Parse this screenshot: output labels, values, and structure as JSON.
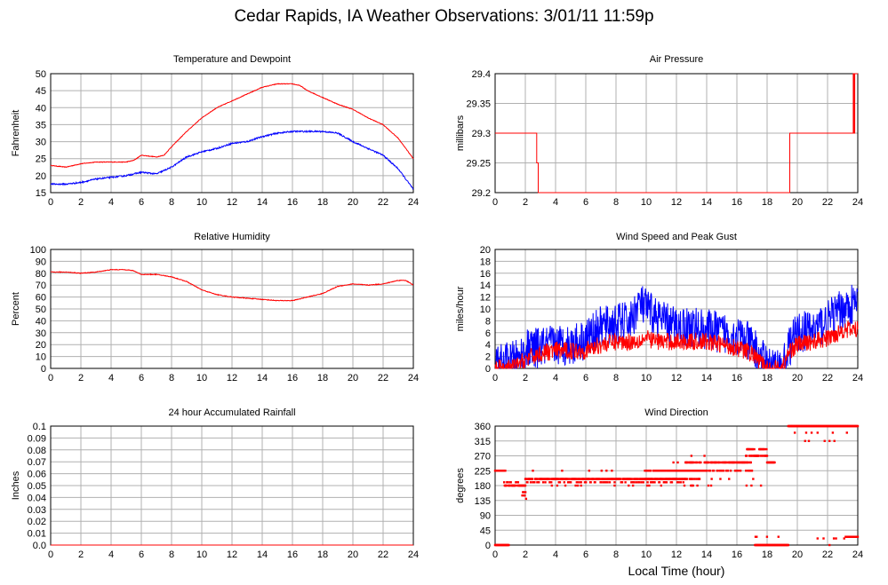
{
  "page": {
    "title": "Cedar Rapids, IA Weather Observations: 3/01/11 11:59p",
    "xlabel": "Local Time (hour)"
  },
  "colors": {
    "primary": "#ff0000",
    "secondary": "#0000ff",
    "grid": "#b0b0b0",
    "axis": "#000000"
  },
  "chart_data": [
    {
      "id": "temp",
      "type": "line",
      "title": "Temperature and Dewpoint",
      "ylabel": "Fahrenheit",
      "xlabel": "",
      "xlim": [
        0,
        24
      ],
      "ylim": [
        15,
        50
      ],
      "xticks": [
        "0",
        "2",
        "4",
        "6",
        "8",
        "10",
        "12",
        "14",
        "16",
        "18",
        "20",
        "22",
        "24"
      ],
      "yticks": [
        "15",
        "20",
        "25",
        "30",
        "35",
        "40",
        "45",
        "50"
      ],
      "grid": true,
      "series": [
        {
          "color": "#ff0000",
          "noise": 0.15,
          "x": [
            0,
            1,
            2,
            3,
            4,
            5,
            5.5,
            6,
            7,
            7.5,
            8,
            9,
            10,
            11,
            12,
            13,
            14,
            15,
            15.5,
            16,
            16.5,
            17,
            18,
            19,
            20,
            21,
            22,
            23,
            24
          ],
          "y": [
            23,
            22.5,
            23.5,
            24,
            24,
            24,
            24.5,
            26,
            25.5,
            26,
            28.5,
            33,
            37,
            40,
            42,
            44,
            46,
            47,
            47,
            47,
            46.5,
            45,
            43,
            41,
            39.5,
            37,
            35,
            31,
            25
          ]
        },
        {
          "color": "#0000ff",
          "noise": 0.35,
          "x": [
            0,
            1,
            2,
            3,
            4,
            5,
            6,
            7,
            8,
            9,
            10,
            11,
            12,
            13,
            14,
            15,
            16,
            17,
            18,
            19,
            20,
            21,
            22,
            23,
            24
          ],
          "y": [
            17.5,
            17.5,
            18,
            19,
            19.5,
            20,
            21,
            20.5,
            22.5,
            25.5,
            27,
            28,
            29.5,
            30,
            31.5,
            32.5,
            33,
            33,
            33,
            32.5,
            30,
            28,
            26,
            22,
            16
          ]
        }
      ]
    },
    {
      "id": "pressure",
      "type": "line",
      "title": "Air Pressure",
      "ylabel": "millibars",
      "xlabel": "",
      "xlim": [
        0,
        24
      ],
      "ylim": [
        29.2,
        29.4
      ],
      "xticks": [
        "0",
        "2",
        "4",
        "6",
        "8",
        "10",
        "12",
        "14",
        "16",
        "18",
        "20",
        "22",
        "24"
      ],
      "yticks": [
        "29.2",
        "29.25",
        "29.3",
        "29.35",
        "29.4"
      ],
      "grid": true,
      "series": [
        {
          "color": "#ff0000",
          "noise": 0,
          "x": [
            0,
            2.75,
            2.75,
            2.85,
            2.85,
            19.5,
            19.5,
            23.7,
            23.7,
            23.75,
            23.75,
            23.8,
            23.8,
            24
          ],
          "y": [
            29.3,
            29.3,
            29.25,
            29.25,
            29.2,
            29.2,
            29.3,
            29.3,
            29.4,
            29.4,
            29.3,
            29.3,
            29.4,
            29.4
          ]
        }
      ]
    },
    {
      "id": "humidity",
      "type": "line",
      "title": "Relative Humidity",
      "ylabel": "Percent",
      "xlabel": "",
      "xlim": [
        0,
        24
      ],
      "ylim": [
        0,
        100
      ],
      "xticks": [
        "0",
        "2",
        "4",
        "6",
        "8",
        "10",
        "12",
        "14",
        "16",
        "18",
        "20",
        "22",
        "24"
      ],
      "yticks": [
        "0",
        "10",
        "20",
        "30",
        "40",
        "50",
        "60",
        "70",
        "80",
        "90",
        "100"
      ],
      "grid": true,
      "series": [
        {
          "color": "#ff0000",
          "noise": 0.5,
          "x": [
            0,
            1,
            2,
            3,
            4,
            5,
            5.5,
            6,
            7,
            8,
            9,
            10,
            11,
            12,
            13,
            14,
            15,
            16,
            17,
            18,
            19,
            20,
            21,
            22,
            23,
            23.5,
            24
          ],
          "y": [
            81,
            81,
            80,
            81,
            83,
            83,
            82,
            79,
            79,
            77,
            73,
            66,
            62,
            60,
            59,
            58,
            57,
            57,
            60,
            63,
            69,
            71,
            70,
            71,
            74,
            74,
            70
          ]
        }
      ]
    },
    {
      "id": "wind",
      "type": "line",
      "title": "Wind Speed and Peak Gust",
      "ylabel": "miles/hour",
      "xlabel": "",
      "xlim": [
        0,
        24
      ],
      "ylim": [
        0,
        20
      ],
      "xticks": [
        "0",
        "2",
        "4",
        "6",
        "8",
        "10",
        "12",
        "14",
        "16",
        "18",
        "20",
        "22",
        "24"
      ],
      "yticks": [
        "0",
        "2",
        "4",
        "6",
        "8",
        "10",
        "12",
        "14",
        "16",
        "18",
        "20"
      ],
      "grid": true,
      "series": [
        {
          "color": "#0000ff",
          "noise": 3.5,
          "floor": 0,
          "x": [
            0,
            1,
            1.5,
            2,
            3,
            4,
            5,
            6,
            7,
            8,
            9,
            9.5,
            10,
            11,
            12,
            13,
            14,
            15,
            16,
            17,
            17.5,
            18,
            18.5,
            19,
            19.5,
            20,
            21,
            22,
            23,
            24
          ],
          "y": [
            0.5,
            1,
            1.5,
            3,
            3.5,
            4,
            4,
            5,
            7,
            7.5,
            8,
            11,
            10,
            8,
            7,
            7,
            6.5,
            6,
            5.5,
            4,
            2,
            0.5,
            0,
            0,
            4,
            6,
            6.5,
            8,
            10,
            11
          ]
        },
        {
          "color": "#ff0000",
          "noise": 1.5,
          "floor": 0,
          "x": [
            0,
            1,
            1.5,
            2,
            3,
            4,
            5,
            6,
            7,
            8,
            9,
            10,
            11,
            12,
            13,
            14,
            15,
            16,
            17,
            17.5,
            18,
            19,
            19.5,
            20,
            21,
            22,
            23,
            24
          ],
          "y": [
            0,
            0,
            0.5,
            1.5,
            2.5,
            3,
            3,
            3,
            4,
            4.5,
            4.5,
            5,
            4.5,
            4.5,
            4.5,
            4.5,
            4,
            3.5,
            2.5,
            1,
            0,
            0,
            3,
            4,
            4.5,
            5,
            6.5,
            6.5
          ]
        }
      ]
    },
    {
      "id": "rain",
      "type": "line",
      "title": "24 hour Accumulated Rainfall",
      "ylabel": "Inches",
      "xlabel": "",
      "xlim": [
        0,
        24
      ],
      "ylim": [
        0,
        0.1
      ],
      "xticks": [
        "0",
        "2",
        "4",
        "6",
        "8",
        "10",
        "12",
        "14",
        "16",
        "18",
        "20",
        "22",
        "24"
      ],
      "yticks": [
        "0.0",
        "0.01",
        "0.02",
        "0.03",
        "0.04",
        "0.05",
        "0.06",
        "0.07",
        "0.08",
        "0.09",
        "0.1"
      ],
      "grid": true,
      "series": [
        {
          "color": "#ff0000",
          "noise": 0,
          "x": [
            0,
            24
          ],
          "y": [
            0,
            0
          ]
        }
      ]
    },
    {
      "id": "winddir",
      "type": "scatter",
      "title": "Wind Direction",
      "ylabel": "degrees",
      "xlabel": "Local Time (hour)",
      "xlim": [
        0,
        24
      ],
      "ylim": [
        0,
        360
      ],
      "xticks": [
        "0",
        "2",
        "4",
        "6",
        "8",
        "10",
        "12",
        "14",
        "16",
        "18",
        "20",
        "22",
        "24"
      ],
      "yticks": [
        "0",
        "45",
        "90",
        "135",
        "180",
        "225",
        "270",
        "315",
        "360"
      ],
      "grid": true,
      "series": [
        {
          "color": "#ff0000",
          "segments": [
            {
              "x0": 0,
              "x1": 0.9,
              "y": [
                0,
                0
              ],
              "jitter": []
            },
            {
              "x0": 0,
              "x1": 0.6,
              "y": [
                225
              ],
              "jitter": [
                225
              ]
            },
            {
              "x0": 0.6,
              "x1": 2,
              "y": [
                180,
                180,
                180,
                190
              ],
              "jitter": [
                150,
                160,
                225
              ]
            },
            {
              "x0": 1.8,
              "x1": 2.05,
              "y": [
                140,
                150,
                160
              ],
              "jitter": []
            },
            {
              "x0": 2,
              "x1": 12.6,
              "y": [
                200,
                200,
                200,
                190
              ],
              "jitter": [
                180,
                225,
                225,
                180
              ]
            },
            {
              "x0": 10,
              "x1": 14,
              "y": [
                225,
                225,
                200
              ],
              "jitter": [
                180,
                250,
                270
              ]
            },
            {
              "x0": 12.6,
              "x1": 17,
              "y": [
                250,
                250,
                225
              ],
              "jitter": [
                200,
                180,
                270
              ]
            },
            {
              "x0": 16.6,
              "x1": 18,
              "y": [
                270,
                290
              ],
              "jitter": [
                315,
                340,
                360,
                200,
                180,
                250
              ]
            },
            {
              "x0": 18,
              "x1": 18.5,
              "y": [
                250
              ],
              "jitter": []
            },
            {
              "x0": 17.2,
              "x1": 19.4,
              "y": [
                0,
                0
              ],
              "jitter": [
                25
              ]
            },
            {
              "x0": 19.4,
              "x1": 24,
              "y": [
                360,
                360
              ],
              "jitter": [
                340,
                340,
                315
              ]
            },
            {
              "x0": 19.4,
              "x1": 24,
              "y": [],
              "jitter": [
                20,
                20,
                45,
                0,
                0
              ]
            },
            {
              "x0": 23.2,
              "x1": 24,
              "y": [
                25,
                25
              ],
              "jitter": []
            }
          ]
        }
      ]
    }
  ]
}
